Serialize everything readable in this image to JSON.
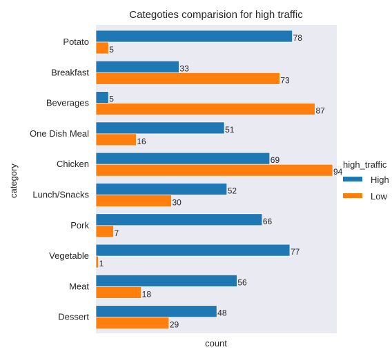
{
  "chart_data": {
    "type": "bar",
    "orientation": "horizontal",
    "title": "Categoties comparision for high traffic",
    "xlabel": "count",
    "ylabel": "category",
    "categories": [
      "Potato",
      "Breakfast",
      "Beverages",
      "One Dish Meal",
      "Chicken",
      "Lunch/Snacks",
      "Pork",
      "Vegetable",
      "Meat",
      "Dessert"
    ],
    "series": [
      {
        "name": "High",
        "color": "#1f77b4",
        "values": [
          78,
          33,
          5,
          51,
          69,
          52,
          66,
          77,
          56,
          48
        ]
      },
      {
        "name": "Low",
        "color": "#ff7f0e",
        "values": [
          5,
          73,
          87,
          16,
          94,
          30,
          7,
          1,
          18,
          29
        ]
      }
    ],
    "xlim": [
      0,
      94
    ],
    "grid": false,
    "background": "#eaeaf2",
    "legend": {
      "title": "high_traffic",
      "placement": "right"
    }
  }
}
